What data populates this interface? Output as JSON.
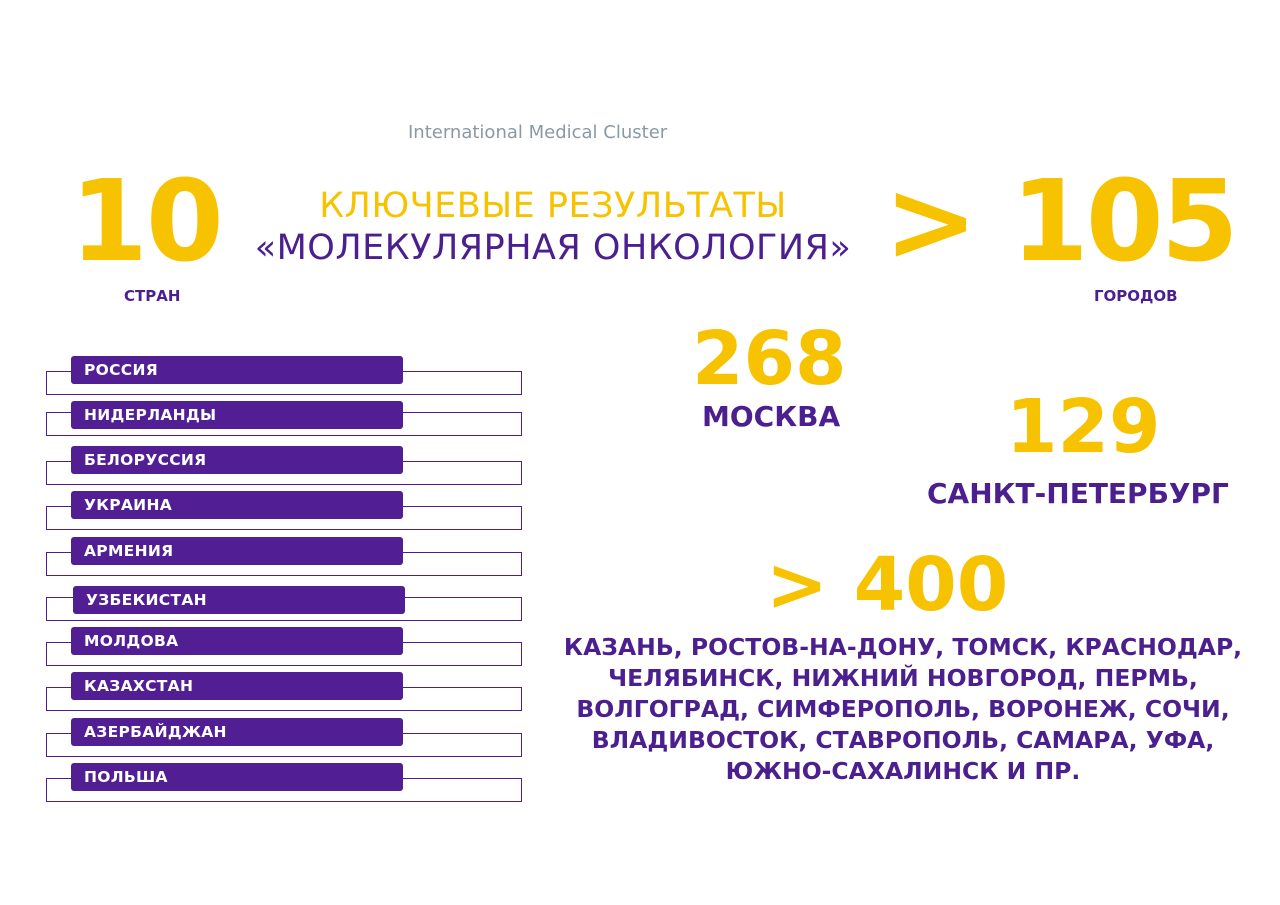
{
  "header": {
    "org": "International Medical Cluster",
    "title_line1": "КЛЮЧЕВЫЕ РЕЗУЛЬТАТЫ",
    "title_line2": "«МОЛЕКУЛЯРНАЯ ОНКОЛОГИЯ»"
  },
  "stats": {
    "countries": {
      "value": "10",
      "label": "СТРАН"
    },
    "cities": {
      "value": "> 105",
      "label": "ГОРОДОВ"
    },
    "moscow": {
      "value": "268",
      "label": "МОСКВА"
    },
    "spb": {
      "value": "129",
      "label": "САНКТ-ПЕТЕРБУРГ"
    },
    "other": {
      "value": "> 400"
    }
  },
  "countries": [
    "РОССИЯ",
    "НИДЕРЛАНДЫ",
    "БЕЛОРУССИЯ",
    "УКРАИНА",
    "АРМЕНИЯ",
    "УЗБЕКИСТАН",
    "МОЛДОВА",
    "КАЗАХСТАН",
    "АЗЕРБАЙДЖАН",
    "ПОЛЬША"
  ],
  "other_cities_lines": [
    "КАЗАНЬ, РОСТОВ-НА-ДОНУ, ТОМСК, КРАСНОДАР,",
    "ЧЕЛЯБИНСК, НИЖНИЙ НОВГОРОД, ПЕРМЬ,",
    "ВОЛГОГРАД, СИМФЕРОПОЛЬ, ВОРОНЕЖ, СОЧИ,",
    "ВЛАДИВОСТОК, СТАВРОПОЛЬ, САМАРА, УФА,",
    "ЮЖНО-САХАЛИНСК И ПР."
  ],
  "colors": {
    "accent_yellow": "#f7c300",
    "brand_purple": "#4b1f8e",
    "pill_purple": "#511f93",
    "org_gray": "#8a99a6"
  }
}
